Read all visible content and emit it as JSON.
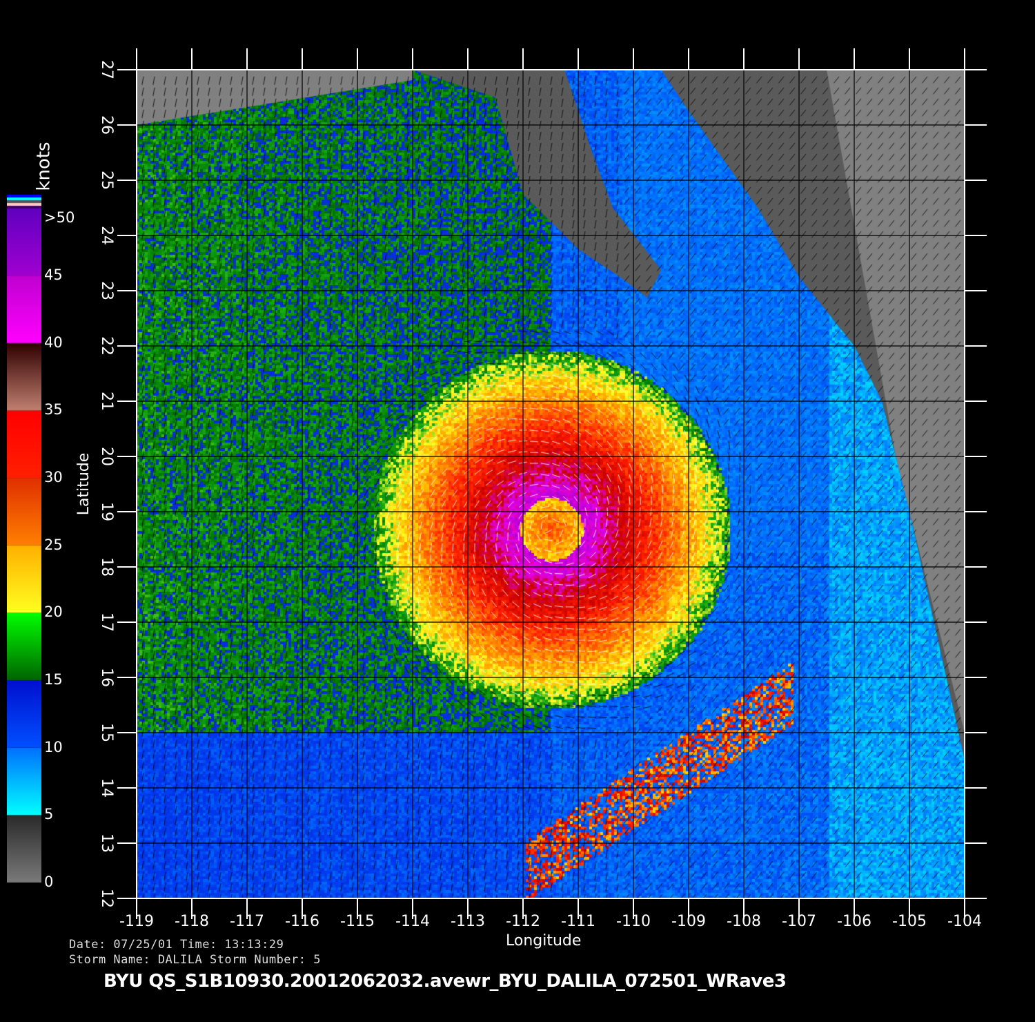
{
  "axes": {
    "xlabel": "Longitude",
    "ylabel": "Latitude",
    "lon_ticks": [
      "-119",
      "-118",
      "-117",
      "-116",
      "-115",
      "-114",
      "-113",
      "-112",
      "-111",
      "-110",
      "-109",
      "-108",
      "-107",
      "-106",
      "-105",
      "-104"
    ],
    "lat_ticks": [
      "12",
      "13",
      "14",
      "15",
      "16",
      "17",
      "18",
      "19",
      "20",
      "21",
      "22",
      "23",
      "24",
      "25",
      "26",
      "27"
    ],
    "lon_range": [
      -119,
      -104
    ],
    "lat_range": [
      12,
      27
    ]
  },
  "colorbar": {
    "unit": "knots",
    "labels": [
      "0",
      "5",
      "10",
      "15",
      "20",
      "25",
      "30",
      "35",
      "40",
      "45",
      ">50"
    ],
    "colors": {
      "0-5": [
        "#7a7a7a",
        "#2a2a2a"
      ],
      "5-10": [
        "#00ffff",
        "#0070ff"
      ],
      "10-15": [
        "#0050ff",
        "#0010d0"
      ],
      "15-20": [
        "#006400",
        "#00ff00"
      ],
      "20-25": [
        "#ffff20",
        "#ffb000"
      ],
      "25-30": [
        "#ff8000",
        "#e03000"
      ],
      "30-35": [
        "#ff2000",
        "#ff0000"
      ],
      "35-40": [
        "#c08070",
        "#300000"
      ],
      "40-45": [
        "#ff00ff",
        "#c000d0"
      ],
      "45-50": [
        "#a000d0",
        "#6000c0"
      ]
    }
  },
  "storm_center": {
    "lon": -111.5,
    "lat": 18.7
  },
  "info": {
    "date_line": "Date: 07/25/01   Time: 13:13:29",
    "storm_line": "Storm  Name: DALILA   Storm  Number: 5",
    "title": "BYU  QS_S1B10930.20012062032.avewr_BYU_DALILA_072501_WRave3"
  },
  "colors": {
    "land": "#5a5a5a",
    "no_data": "#808080",
    "background": "#000000",
    "grid": "#000000",
    "axis": "#ffffff"
  }
}
